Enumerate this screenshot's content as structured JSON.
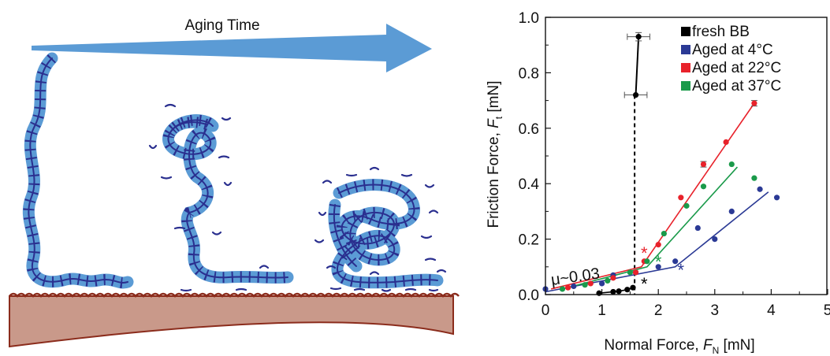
{
  "diagram": {
    "arrow_label": "Aging Time",
    "colors": {
      "arrow": "#5b9bd5",
      "brush_backbone": "#5b9bd5",
      "brush_sidechain": "#2a2f8f",
      "substrate_fill": "#c9998a",
      "substrate_edge": "#8b2c1c"
    }
  },
  "chart_data": {
    "type": "scatter",
    "xlabel_main": "Normal Force, ",
    "xlabel_var": "F",
    "xlabel_sub": "N",
    "xlabel_unit": " [mN]",
    "ylabel_main": "Friction Force, ",
    "ylabel_var": "F",
    "ylabel_sub": "t",
    "ylabel_unit": " [mN]",
    "xlim": [
      0,
      5
    ],
    "ylim": [
      0,
      1.0
    ],
    "xticks": [
      0,
      1,
      2,
      3,
      4,
      5
    ],
    "yticks": [
      0.0,
      0.2,
      0.4,
      0.6,
      0.8,
      1.0
    ],
    "ytick_labels": [
      "0.0",
      "0.2",
      "0.4",
      "0.6",
      "0.8",
      "1.0"
    ],
    "legend_position": "top-right",
    "annotation": "μ~0.03",
    "series": [
      {
        "name": "fresh BB",
        "color": "#000000",
        "points": [
          [
            0.95,
            0.005
          ],
          [
            1.2,
            0.01
          ],
          [
            1.3,
            0.012
          ],
          [
            1.45,
            0.018
          ],
          [
            1.55,
            0.025
          ],
          [
            1.6,
            0.72
          ],
          [
            1.65,
            0.93
          ]
        ],
        "xerr": [
          0,
          0,
          0,
          0,
          0,
          0.2,
          0.2
        ],
        "yerr": [
          0,
          0,
          0,
          0,
          0,
          0,
          0.015
        ],
        "connect": true,
        "dashed_vertical_x": 1.58,
        "critical_marker": [
          1.75,
          0.04
        ]
      },
      {
        "name": "Aged at 4°C",
        "color": "#2b3a95",
        "points": [
          [
            0.0,
            0.02
          ],
          [
            0.5,
            0.03
          ],
          [
            1.0,
            0.04
          ],
          [
            1.2,
            0.07
          ],
          [
            1.6,
            0.08
          ],
          [
            2.0,
            0.1
          ],
          [
            2.3,
            0.12
          ],
          [
            2.7,
            0.24
          ],
          [
            3.0,
            0.2
          ],
          [
            3.3,
            0.3
          ],
          [
            3.8,
            0.38
          ],
          [
            4.1,
            0.35
          ]
        ],
        "fit": [
          [
            0,
            0.01
          ],
          [
            2.3,
            0.1
          ],
          [
            3.95,
            0.37
          ]
        ],
        "critical_marker": [
          2.4,
          0.09
        ]
      },
      {
        "name": "Aged at 22°C",
        "color": "#e8222b",
        "points": [
          [
            0.4,
            0.025
          ],
          [
            0.8,
            0.04
          ],
          [
            1.2,
            0.06
          ],
          [
            1.6,
            0.08
          ],
          [
            1.75,
            0.12
          ],
          [
            2.0,
            0.18
          ],
          [
            2.4,
            0.35
          ],
          [
            2.8,
            0.47
          ],
          [
            3.2,
            0.55
          ],
          [
            3.7,
            0.69
          ]
        ],
        "yerr": [
          0,
          0,
          0,
          0,
          0,
          0,
          0,
          0.01,
          0,
          0.01
        ],
        "fit": [
          [
            0.1,
            0.02
          ],
          [
            1.7,
            0.1
          ],
          [
            3.7,
            0.69
          ]
        ],
        "critical_marker": [
          1.75,
          0.15
        ]
      },
      {
        "name": "Aged at 37°C",
        "color": "#1a9a4a",
        "points": [
          [
            0.3,
            0.02
          ],
          [
            0.7,
            0.035
          ],
          [
            1.1,
            0.05
          ],
          [
            1.5,
            0.08
          ],
          [
            1.8,
            0.12
          ],
          [
            2.1,
            0.22
          ],
          [
            2.5,
            0.32
          ],
          [
            2.8,
            0.39
          ],
          [
            3.3,
            0.47
          ],
          [
            3.7,
            0.42
          ]
        ],
        "fit": [
          [
            0.3,
            0.02
          ],
          [
            1.8,
            0.1
          ],
          [
            3.4,
            0.46
          ]
        ],
        "critical_marker": [
          2.0,
          0.12
        ]
      }
    ]
  }
}
